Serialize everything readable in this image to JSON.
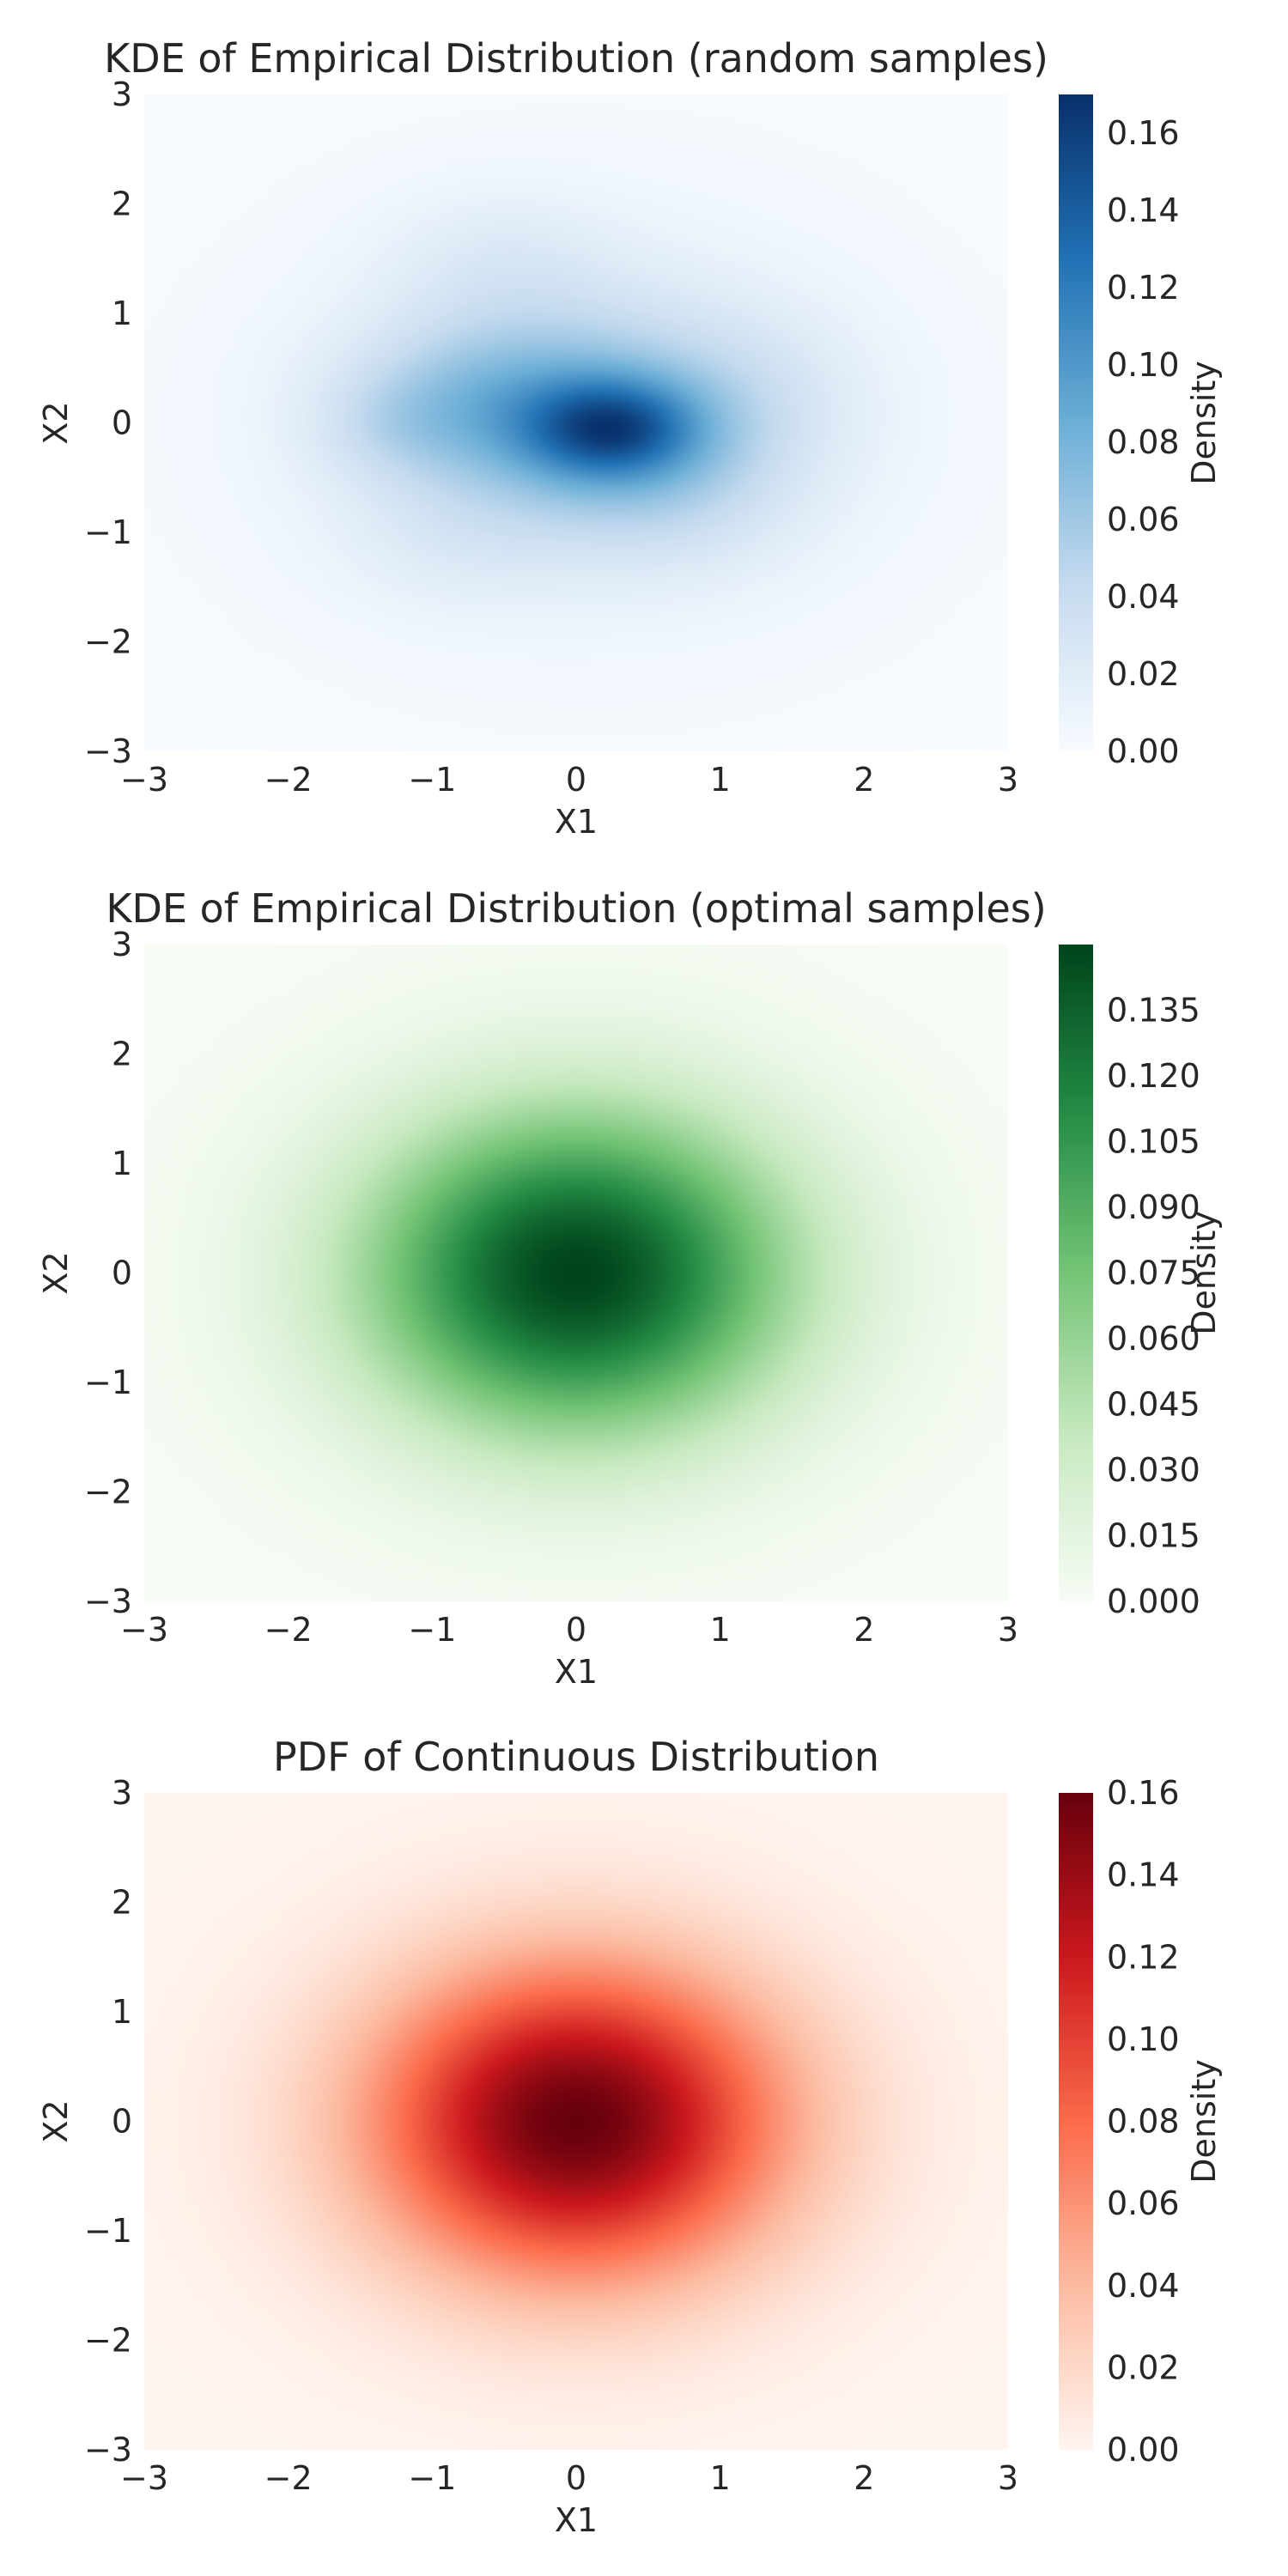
{
  "chart_data": [
    {
      "type": "heatmap",
      "title": "KDE of Empirical Distribution (random samples)",
      "xlabel": "X1",
      "ylabel": "X2",
      "xlim": [
        -3,
        3
      ],
      "ylim": [
        -3,
        3
      ],
      "x_ticks": [
        -3,
        -2,
        -1,
        0,
        1,
        2,
        3
      ],
      "y_ticks": [
        -3,
        -2,
        -1,
        0,
        1,
        2,
        3
      ],
      "x_tick_labels": [
        "−3",
        "−2",
        "−1",
        "0",
        "1",
        "2",
        "3"
      ],
      "y_tick_labels": [
        "−3",
        "−2",
        "−1",
        "0",
        "1",
        "2",
        "3"
      ],
      "colormap": "Blues",
      "colors": [
        "#f7fbff",
        "#c6dbef",
        "#6baed6",
        "#2171b5",
        "#08306b"
      ],
      "colorbar": {
        "label": "Density",
        "range": [
          0,
          0.17
        ],
        "ticks": [
          0,
          0.02,
          0.04,
          0.06,
          0.08,
          0.1,
          0.12,
          0.14,
          0.16
        ],
        "tick_labels": [
          "0.00",
          "0.02",
          "0.04",
          "0.06",
          "0.08",
          "0.10",
          "0.12",
          "0.14",
          "0.16"
        ]
      },
      "peak": {
        "x": 0.25,
        "y": -0.05,
        "density": 0.17
      },
      "components": [
        {
          "cx": 0.25,
          "cy": -0.05,
          "sx": 0.42,
          "sy": 0.32,
          "w": 0.085
        },
        {
          "cx": 0.0,
          "cy": 0.05,
          "sx": 0.95,
          "sy": 0.75,
          "w": 0.055
        },
        {
          "cx": -0.75,
          "cy": 0.2,
          "sx": 0.6,
          "sy": 0.45,
          "w": 0.025
        },
        {
          "cx": -1.3,
          "cy": -0.05,
          "sx": 0.35,
          "sy": 0.3,
          "w": 0.01
        },
        {
          "cx": 0.7,
          "cy": -0.65,
          "sx": 0.6,
          "sy": 0.5,
          "w": 0.015
        },
        {
          "cx": -0.55,
          "cy": 1.5,
          "sx": 0.55,
          "sy": 0.45,
          "w": 0.012
        },
        {
          "cx": -0.9,
          "cy": -1.1,
          "sx": 0.55,
          "sy": 0.45,
          "w": 0.008
        },
        {
          "cx": 1.3,
          "cy": 0.3,
          "sx": 0.5,
          "sy": 0.5,
          "w": 0.008
        },
        {
          "cx": 0.1,
          "cy": 0.0,
          "sx": 1.6,
          "sy": 1.5,
          "w": 0.012
        }
      ]
    },
    {
      "type": "heatmap",
      "title": "KDE of Empirical Distribution (optimal samples)",
      "xlabel": "X1",
      "ylabel": "X2",
      "xlim": [
        -3,
        3
      ],
      "ylim": [
        -3,
        3
      ],
      "x_ticks": [
        -3,
        -2,
        -1,
        0,
        1,
        2,
        3
      ],
      "y_ticks": [
        -3,
        -2,
        -1,
        0,
        1,
        2,
        3
      ],
      "x_tick_labels": [
        "−3",
        "−2",
        "−1",
        "0",
        "1",
        "2",
        "3"
      ],
      "y_tick_labels": [
        "−3",
        "−2",
        "−1",
        "0",
        "1",
        "2",
        "3"
      ],
      "colormap": "Greens",
      "colors": [
        "#f7fcf5",
        "#c7e9c0",
        "#74c476",
        "#238b45",
        "#00441b"
      ],
      "colorbar": {
        "label": "Density",
        "range": [
          0,
          0.15
        ],
        "ticks": [
          0,
          0.015,
          0.03,
          0.045,
          0.06,
          0.075,
          0.09,
          0.105,
          0.12,
          0.135
        ],
        "tick_labels": [
          "0.000",
          "0.015",
          "0.030",
          "0.045",
          "0.060",
          "0.075",
          "0.090",
          "0.105",
          "0.120",
          "0.135"
        ]
      },
      "peak": {
        "x": 0,
        "y": 0,
        "density": 0.15
      },
      "components": [
        {
          "cx": 0,
          "cy": 0,
          "sx": 1.05,
          "sy": 1.05,
          "w": 0.15
        }
      ]
    },
    {
      "type": "heatmap",
      "title": "PDF of Continuous Distribution",
      "xlabel": "X1",
      "ylabel": "X2",
      "xlim": [
        -3,
        3
      ],
      "ylim": [
        -3,
        3
      ],
      "x_ticks": [
        -3,
        -2,
        -1,
        0,
        1,
        2,
        3
      ],
      "y_ticks": [
        -3,
        -2,
        -1,
        0,
        1,
        2,
        3
      ],
      "x_tick_labels": [
        "−3",
        "−2",
        "−1",
        "0",
        "1",
        "2",
        "3"
      ],
      "y_tick_labels": [
        "−3",
        "−2",
        "−1",
        "0",
        "1",
        "2",
        "3"
      ],
      "colormap": "Reds",
      "colors": [
        "#fff5f0",
        "#fcbba1",
        "#fb6a4a",
        "#cb181d",
        "#67000d"
      ],
      "colorbar": {
        "label": "Density",
        "range": [
          0,
          0.16
        ],
        "ticks": [
          0,
          0.02,
          0.04,
          0.06,
          0.08,
          0.1,
          0.12,
          0.14,
          0.16
        ],
        "tick_labels": [
          "0.00",
          "0.02",
          "0.04",
          "0.06",
          "0.08",
          "0.10",
          "0.12",
          "0.14",
          "0.16"
        ]
      },
      "peak": {
        "x": 0,
        "y": 0,
        "density": 0.16
      },
      "components": [
        {
          "cx": 0,
          "cy": 0,
          "sx": 1.0,
          "sy": 1.0,
          "w": 0.16
        }
      ]
    }
  ]
}
